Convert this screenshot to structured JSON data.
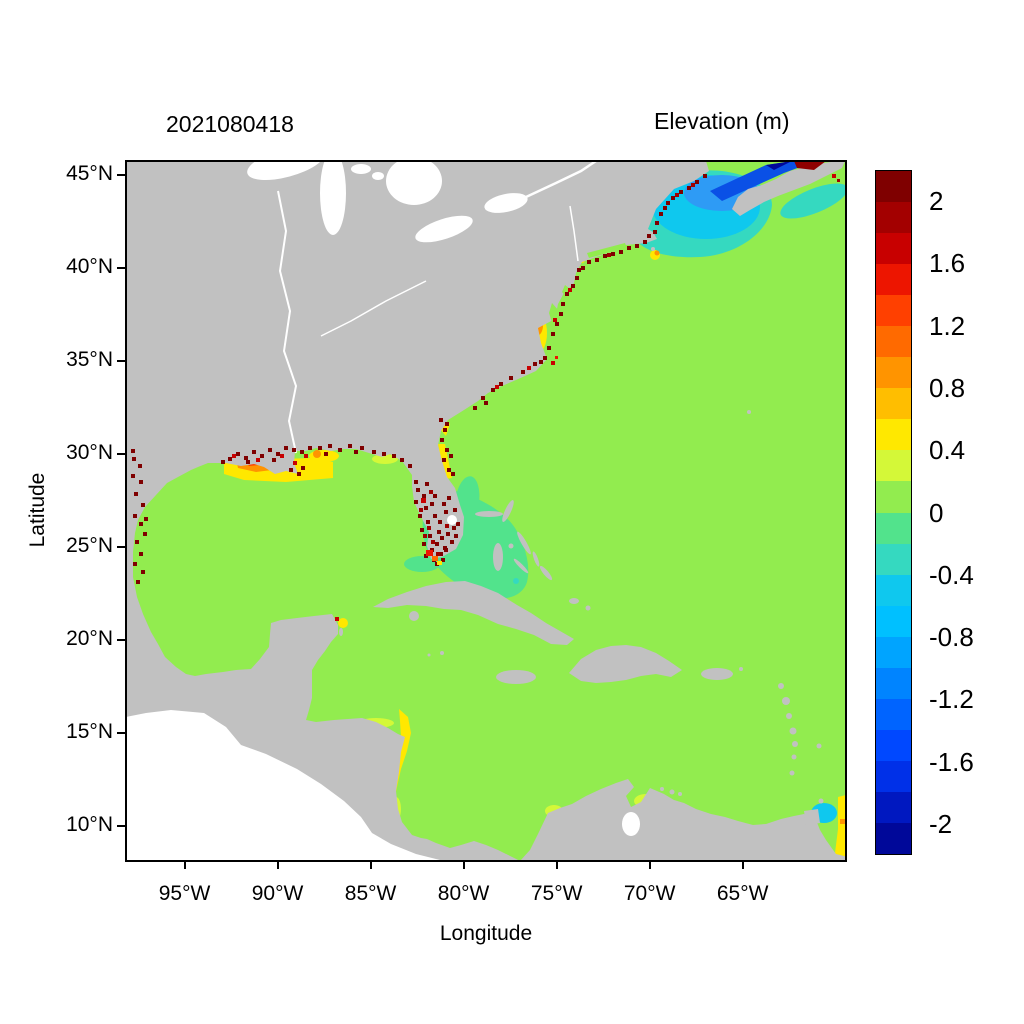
{
  "chart_data": {
    "type": "heatmap",
    "title": "2021080418",
    "colorbar_title": "Elevation (m)",
    "xlabel": "Longitude",
    "ylabel": "Latitude",
    "x_ticks": [
      {
        "value": 95,
        "label": "95°W"
      },
      {
        "value": 90,
        "label": "90°W"
      },
      {
        "value": 85,
        "label": "85°W"
      },
      {
        "value": 80,
        "label": "80°W"
      },
      {
        "value": 75,
        "label": "75°W"
      },
      {
        "value": 70,
        "label": "70°W"
      },
      {
        "value": 65,
        "label": "65°W"
      }
    ],
    "y_ticks": [
      {
        "value": 45,
        "label": "45°N"
      },
      {
        "value": 40,
        "label": "40°N"
      },
      {
        "value": 35,
        "label": "35°N"
      },
      {
        "value": 30,
        "label": "30°N"
      },
      {
        "value": 25,
        "label": "25°N"
      },
      {
        "value": 20,
        "label": "20°N"
      },
      {
        "value": 15,
        "label": "15°N"
      },
      {
        "value": 10,
        "label": "10°N"
      }
    ],
    "lon_range_deg_west": [
      98.2,
      59.5
    ],
    "lat_range_deg_north": [
      8.2,
      45.8
    ],
    "colorbar": {
      "value_max": 2.2,
      "value_min": -2.2,
      "band_step": 0.2,
      "tick_labels": [
        {
          "value": 2,
          "label": "2"
        },
        {
          "value": 1.6,
          "label": "1.6"
        },
        {
          "value": 1.2,
          "label": "1.2"
        },
        {
          "value": 0.8,
          "label": "0.8"
        },
        {
          "value": 0.4,
          "label": "0.4"
        },
        {
          "value": 0,
          "label": "0"
        },
        {
          "value": -0.4,
          "label": "-0.4"
        },
        {
          "value": -0.8,
          "label": "-0.8"
        },
        {
          "value": -1.2,
          "label": "-1.2"
        },
        {
          "value": -1.6,
          "label": "-1.6"
        },
        {
          "value": -2,
          "label": "-2"
        }
      ],
      "colors_top_to_bottom": [
        "#7F0000",
        "#A30000",
        "#C80000",
        "#ED1500",
        "#FF4000",
        "#FF6A00",
        "#FF9400",
        "#FFBE00",
        "#FFE800",
        "#D4F838",
        "#92EC4F",
        "#52E38C",
        "#35D9C0",
        "#0FC8EE",
        "#00C0FF",
        "#00A4FF",
        "#0084FF",
        "#0064FF",
        "#0048FF",
        "#0030E8",
        "#0018C0",
        "#000899"
      ]
    },
    "background": {
      "ocean_hex": "#92EC4F",
      "land_hex": "#C1C1C1",
      "nodata_hex": "#FFFFFF"
    },
    "features": [
      {
        "region": "Open Atlantic, Gulf of Mexico and Caribbean",
        "elevation_m": "0 to 0.2",
        "rendering": "uniform light green"
      },
      {
        "region": "Bahamas banks / Florida Straits",
        "elevation_m": "-0.2 to 0",
        "rendering": "spring-green patch"
      },
      {
        "region": "Gulf of Maine and Scotian Shelf",
        "elevation_m": "-0.4 to -1.2",
        "rendering": "teal-cyan-blue patch"
      },
      {
        "region": "Bay of Fundy",
        "elevation_m": "-1.2 to -2.2",
        "rendering": "dark blue wedge"
      },
      {
        "region": "Head of Bay of Fundy (Minas Basin)",
        "elevation_m": "> 2",
        "rendering": "dark red sliver"
      },
      {
        "region": "Louisiana - Mississippi shelf",
        "elevation_m": "0.4 to 1.6",
        "rendering": "yellow-orange band along coast"
      },
      {
        "region": "Gulf coast shoreline (Texas to Florida panhandle)",
        "elevation_m": "> 2",
        "rendering": "dark red speckles"
      },
      {
        "region": "Southwest Florida coast and interior",
        "elevation_m": "> 2",
        "rendering": "dense dark red speckles with orange-red core"
      },
      {
        "region": "US East Coast shoreline (Georgia to Maine)",
        "elevation_m": "> 2",
        "rendering": "dark red speckles"
      },
      {
        "region": "Chesapeake Bay mouth / Virginia coast",
        "elevation_m": "0.4 to 1.4",
        "rendering": "yellow patch with orange core"
      },
      {
        "region": "Nicaragua coast",
        "elevation_m": "0.2 to 0.6",
        "rendering": "yellow band"
      },
      {
        "region": "Cancun / Cozumel coast",
        "elevation_m": "0.4 to 0.6",
        "rendering": "small yellow patch"
      },
      {
        "region": "Orinoco delta / Trinidad (right map edge)",
        "elevation_m": "yellow sliver ~0.5, cyan patch ~-0.5",
        "rendering": "mixed"
      }
    ]
  }
}
